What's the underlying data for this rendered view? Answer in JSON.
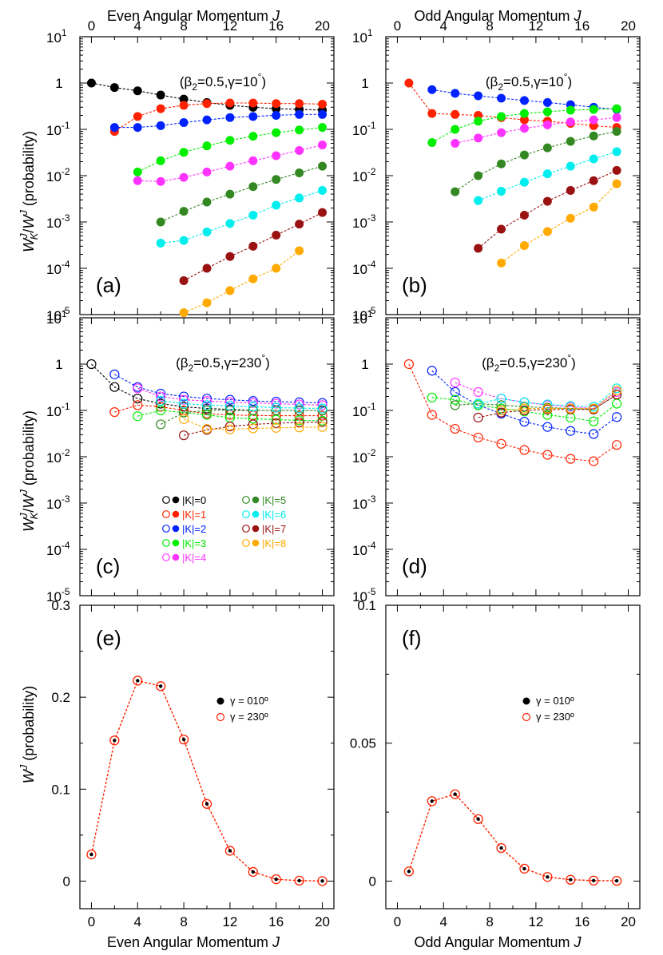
{
  "colors": {
    "K0": "#000000",
    "K1": "#ff2200",
    "K2": "#0022ff",
    "K3": "#00ee00",
    "K4": "#ff33ff",
    "K5": "#338822",
    "K6": "#00eeee",
    "K7": "#991111",
    "K8": "#ffaa00",
    "frame": "#000000"
  },
  "labels": {
    "top_even": "Even Angular Momentum J",
    "top_odd": "Odd Angular Momentum J",
    "bottom_even": "Even Angular Momentum J",
    "bottom_odd": "Odd Angular Momentum J",
    "ylabel_ratio": "W^J_K/W^J (probability)",
    "ylabel_total": "W^J (probability)",
    "annot_a": "(β₂=0.5,γ=10°)",
    "annot_c": "(β₂=0.5,γ=230°)"
  },
  "chart_data": [
    {
      "id": "a",
      "type": "scatter",
      "panel_label": "(a)",
      "annotation": "(β2=0.5,γ=10°)",
      "yscale": "log",
      "ylim": [
        1e-05,
        10
      ],
      "xlim": [
        -1,
        21
      ],
      "xticks": [
        0,
        4,
        8,
        12,
        16,
        20
      ],
      "ytick_labels": [
        "10^-5",
        "10^-4",
        "10^-3",
        "10^-2",
        "10^-1",
        "1",
        "10^1"
      ],
      "marker": "filled",
      "series": [
        {
          "name": "|K|=0",
          "x": [
            0,
            2,
            4,
            6,
            8,
            10,
            12,
            14,
            16,
            18,
            20
          ],
          "y": [
            1.0,
            0.8,
            0.68,
            0.55,
            0.45,
            0.38,
            0.33,
            0.3,
            0.28,
            0.27,
            0.26
          ]
        },
        {
          "name": "|K|=1",
          "x": [
            2,
            4,
            6,
            8,
            10,
            12,
            14,
            16,
            18,
            20
          ],
          "y": [
            0.09,
            0.19,
            0.28,
            0.33,
            0.36,
            0.37,
            0.37,
            0.36,
            0.36,
            0.35
          ]
        },
        {
          "name": "|K|=2",
          "x": [
            2,
            4,
            6,
            8,
            10,
            12,
            14,
            16,
            18,
            20
          ],
          "y": [
            0.11,
            0.11,
            0.12,
            0.14,
            0.16,
            0.18,
            0.19,
            0.2,
            0.21,
            0.21
          ]
        },
        {
          "name": "|K|=3",
          "x": [
            4,
            6,
            8,
            10,
            12,
            14,
            16,
            18,
            20
          ],
          "y": [
            0.012,
            0.021,
            0.032,
            0.044,
            0.058,
            0.071,
            0.085,
            0.097,
            0.11
          ]
        },
        {
          "name": "|K|=4",
          "x": [
            4,
            6,
            8,
            10,
            12,
            14,
            16,
            18,
            20
          ],
          "y": [
            0.0078,
            0.0075,
            0.0092,
            0.012,
            0.016,
            0.021,
            0.027,
            0.035,
            0.046
          ]
        },
        {
          "name": "|K|=5",
          "x": [
            6,
            8,
            10,
            12,
            14,
            16,
            18,
            20
          ],
          "y": [
            0.001,
            0.0017,
            0.0027,
            0.004,
            0.0058,
            0.0083,
            0.0115,
            0.016
          ]
        },
        {
          "name": "|K|=6",
          "x": [
            6,
            8,
            10,
            12,
            14,
            16,
            18,
            20
          ],
          "y": [
            0.00035,
            0.0004,
            0.00061,
            0.00093,
            0.0014,
            0.0023,
            0.0033,
            0.0048
          ]
        },
        {
          "name": "|K|=7",
          "x": [
            8,
            10,
            12,
            14,
            16,
            18,
            20
          ],
          "y": [
            5.4e-05,
            0.0001,
            0.00018,
            0.0003,
            0.00052,
            0.0009,
            0.0016
          ]
        },
        {
          "name": "|K|=8",
          "x": [
            8,
            10,
            12,
            14,
            16,
            18
          ],
          "y": [
            1.1e-05,
            1.8e-05,
            3.3e-05,
            5.9e-05,
            0.0001,
            0.00024
          ]
        }
      ]
    },
    {
      "id": "b",
      "type": "scatter",
      "panel_label": "(b)",
      "annotation": "(β2=0.5,γ=10°)",
      "yscale": "log",
      "ylim": [
        1e-05,
        10
      ],
      "xlim": [
        -1,
        21
      ],
      "xticks": [
        0,
        4,
        8,
        12,
        16,
        20
      ],
      "ytick_labels": [
        "10^-5",
        "10^-4",
        "10^-3",
        "10^-2",
        "10^-1",
        "1",
        "10^1"
      ],
      "marker": "filled",
      "series": [
        {
          "name": "|K|=1",
          "x": [
            1,
            3,
            5,
            7,
            9,
            11,
            13,
            15,
            17,
            19
          ],
          "y": [
            1.0,
            0.22,
            0.21,
            0.2,
            0.18,
            0.16,
            0.15,
            0.135,
            0.12,
            0.11
          ]
        },
        {
          "name": "|K|=2",
          "x": [
            3,
            5,
            7,
            9,
            11,
            13,
            15,
            17,
            19
          ],
          "y": [
            0.72,
            0.6,
            0.53,
            0.47,
            0.42,
            0.38,
            0.34,
            0.3,
            0.27
          ]
        },
        {
          "name": "|K|=3",
          "x": [
            3,
            5,
            7,
            9,
            11,
            13,
            15,
            17,
            19
          ],
          "y": [
            0.052,
            0.1,
            0.15,
            0.19,
            0.22,
            0.24,
            0.26,
            0.27,
            0.28
          ]
        },
        {
          "name": "|K|=4",
          "x": [
            5,
            7,
            9,
            11,
            13,
            15,
            17,
            19
          ],
          "y": [
            0.05,
            0.065,
            0.085,
            0.105,
            0.125,
            0.145,
            0.16,
            0.18
          ]
        },
        {
          "name": "|K|=5",
          "x": [
            5,
            7,
            9,
            11,
            13,
            15,
            17,
            19
          ],
          "y": [
            0.0045,
            0.01,
            0.018,
            0.028,
            0.04,
            0.055,
            0.072,
            0.09
          ]
        },
        {
          "name": "|K|=6",
          "x": [
            7,
            9,
            11,
            13,
            15,
            17,
            19
          ],
          "y": [
            0.0029,
            0.0046,
            0.0072,
            0.011,
            0.016,
            0.023,
            0.033
          ]
        },
        {
          "name": "|K|=7",
          "x": [
            7,
            9,
            11,
            13,
            15,
            17,
            19
          ],
          "y": [
            0.00027,
            0.0007,
            0.0014,
            0.0028,
            0.0048,
            0.0078,
            0.013
          ]
        },
        {
          "name": "|K|=8",
          "x": [
            9,
            11,
            13,
            15,
            17,
            19
          ],
          "y": [
            0.00013,
            0.00031,
            0.00062,
            0.0012,
            0.0021,
            0.0067
          ]
        }
      ]
    },
    {
      "id": "c",
      "type": "scatter",
      "panel_label": "(c)",
      "annotation": "(β2=0.5,γ=230°)",
      "yscale": "log",
      "ylim": [
        1e-05,
        10
      ],
      "xlim": [
        -1,
        21
      ],
      "xticks": [
        0,
        4,
        8,
        12,
        16,
        20
      ],
      "ytick_labels": [
        "10^-5",
        "10^-4",
        "10^-3",
        "10^-2",
        "10^-1",
        "1",
        "10^1"
      ],
      "marker": "open",
      "legend": {
        "placement": "lower-middle",
        "entries": [
          {
            "label": "|K|=0",
            "key": "K0"
          },
          {
            "label": "|K|=1",
            "key": "K1"
          },
          {
            "label": "|K|=2",
            "key": "K2"
          },
          {
            "label": "|K|=3",
            "key": "K3"
          },
          {
            "label": "|K|=4",
            "key": "K4"
          },
          {
            "label": "|K|=5",
            "key": "K5"
          },
          {
            "label": "|K|=6",
            "key": "K6"
          },
          {
            "label": "|K|=7",
            "key": "K7"
          },
          {
            "label": "|K|=8",
            "key": "K8"
          }
        ]
      },
      "series": [
        {
          "name": "|K|=0",
          "x": [
            0,
            2,
            4,
            6,
            8,
            10,
            12,
            14,
            16,
            18,
            20
          ],
          "y": [
            1.0,
            0.32,
            0.18,
            0.14,
            0.12,
            0.11,
            0.105,
            0.1,
            0.1,
            0.1,
            0.1
          ]
        },
        {
          "name": "|K|=1",
          "x": [
            2,
            4,
            6,
            8,
            10,
            12,
            14,
            16,
            18,
            20
          ],
          "y": [
            0.092,
            0.13,
            0.12,
            0.1,
            0.085,
            0.08,
            0.078,
            0.077,
            0.077,
            0.077
          ]
        },
        {
          "name": "|K|=2",
          "x": [
            2,
            4,
            6,
            8,
            10,
            12,
            14,
            16,
            18,
            20
          ],
          "y": [
            0.6,
            0.32,
            0.23,
            0.2,
            0.18,
            0.17,
            0.16,
            0.155,
            0.15,
            0.145
          ]
        },
        {
          "name": "|K|=3",
          "x": [
            4,
            6,
            8,
            10,
            12,
            14,
            16,
            18,
            20
          ],
          "y": [
            0.075,
            0.1,
            0.09,
            0.08,
            0.07,
            0.066,
            0.063,
            0.061,
            0.06
          ]
        },
        {
          "name": "|K|=4",
          "x": [
            4,
            6,
            8,
            10,
            12,
            14,
            16,
            18,
            20
          ],
          "y": [
            0.3,
            0.2,
            0.17,
            0.16,
            0.15,
            0.145,
            0.14,
            0.135,
            0.13
          ]
        },
        {
          "name": "|K|=5",
          "x": [
            6,
            8,
            10,
            12,
            14,
            16,
            18,
            20
          ],
          "y": [
            0.05,
            0.09,
            0.1,
            0.1,
            0.1,
            0.1,
            0.1,
            0.1
          ]
        },
        {
          "name": "|K|=6",
          "x": [
            6,
            8,
            10,
            12,
            14,
            16,
            18,
            20
          ],
          "y": [
            0.16,
            0.14,
            0.13,
            0.125,
            0.12,
            0.115,
            0.112,
            0.11
          ]
        },
        {
          "name": "|K|=7",
          "x": [
            8,
            10,
            12,
            14,
            16,
            18,
            20
          ],
          "y": [
            0.029,
            0.038,
            0.045,
            0.05,
            0.053,
            0.055,
            0.056
          ]
        },
        {
          "name": "|K|=8",
          "x": [
            8,
            10,
            12,
            14,
            16,
            18,
            20
          ],
          "y": [
            0.065,
            0.04,
            0.039,
            0.041,
            0.042,
            0.043,
            0.044
          ]
        }
      ]
    },
    {
      "id": "d",
      "type": "scatter",
      "panel_label": "(d)",
      "annotation": "(β2=0.5,γ=230°)",
      "yscale": "log",
      "ylim": [
        1e-05,
        10
      ],
      "xlim": [
        -1,
        21
      ],
      "xticks": [
        0,
        4,
        8,
        12,
        16,
        20
      ],
      "ytick_labels": [
        "10^-5",
        "10^-4",
        "10^-3",
        "10^-2",
        "10^-1",
        "1",
        "10^1"
      ],
      "marker": "open",
      "series": [
        {
          "name": "|K|=1",
          "x": [
            1,
            3,
            5,
            7,
            9,
            11,
            13,
            15,
            17,
            19
          ],
          "y": [
            1.0,
            0.08,
            0.04,
            0.026,
            0.019,
            0.014,
            0.011,
            0.009,
            0.008,
            0.018
          ]
        },
        {
          "name": "|K|=2",
          "x": [
            3,
            5,
            7,
            9,
            11,
            13,
            15,
            17,
            19
          ],
          "y": [
            0.72,
            0.25,
            0.13,
            0.085,
            0.057,
            0.044,
            0.036,
            0.031,
            0.072
          ]
        },
        {
          "name": "|K|=3",
          "x": [
            3,
            5,
            7,
            9,
            11,
            13,
            15,
            17,
            19
          ],
          "y": [
            0.19,
            0.17,
            0.13,
            0.11,
            0.095,
            0.08,
            0.07,
            0.058,
            0.14
          ]
        },
        {
          "name": "|K|=4",
          "x": [
            5,
            7,
            9,
            11,
            13,
            15,
            17,
            19
          ],
          "y": [
            0.4,
            0.25,
            0.18,
            0.15,
            0.13,
            0.12,
            0.11,
            0.25
          ]
        },
        {
          "name": "|K|=5",
          "x": [
            5,
            7,
            9,
            11,
            13,
            15,
            17,
            19
          ],
          "y": [
            0.13,
            0.14,
            0.13,
            0.12,
            0.115,
            0.11,
            0.105,
            0.22
          ]
        },
        {
          "name": "|K|=6",
          "x": [
            7,
            9,
            11,
            13,
            15,
            17,
            19
          ],
          "y": [
            0.14,
            0.18,
            0.15,
            0.135,
            0.125,
            0.12,
            0.3
          ]
        },
        {
          "name": "|K|=7",
          "x": [
            7,
            9,
            11,
            13,
            15,
            17,
            19
          ],
          "y": [
            0.07,
            0.09,
            0.1,
            0.105,
            0.105,
            0.105,
            0.22
          ]
        },
        {
          "name": "|K|=8",
          "x": [
            9,
            11,
            13,
            15,
            17,
            19
          ],
          "y": [
            0.1,
            0.11,
            0.11,
            0.11,
            0.11,
            0.27
          ]
        }
      ]
    },
    {
      "id": "e",
      "type": "line",
      "panel_label": "(e)",
      "yscale": "linear",
      "ylim": [
        -0.03,
        0.3
      ],
      "xlim": [
        -1,
        21
      ],
      "xticks": [
        0,
        4,
        8,
        12,
        16,
        20
      ],
      "yticks": [
        0,
        0.1,
        0.2,
        0.3
      ],
      "ytick_labels": [
        "0",
        "0.1",
        "0.2",
        "0.3"
      ],
      "legend": {
        "placement": "upper-right",
        "entries": [
          {
            "label": "γ = 010º",
            "style": "filled"
          },
          {
            "label": "γ = 230º",
            "style": "open"
          }
        ]
      },
      "x": [
        0,
        2,
        4,
        6,
        8,
        10,
        12,
        14,
        16,
        18,
        20
      ],
      "series": [
        {
          "name": "γ = 010º",
          "values": [
            0.029,
            0.153,
            0.218,
            0.212,
            0.154,
            0.084,
            0.033,
            0.01,
            0.002,
            0.0005,
            0.0001
          ]
        },
        {
          "name": "γ = 230º",
          "values": [
            0.029,
            0.153,
            0.218,
            0.212,
            0.154,
            0.084,
            0.033,
            0.01,
            0.002,
            0.0005,
            0.0001
          ]
        }
      ]
    },
    {
      "id": "f",
      "type": "line",
      "panel_label": "(f)",
      "yscale": "linear",
      "ylim": [
        -0.01,
        0.1
      ],
      "xlim": [
        -1,
        21
      ],
      "xticks": [
        0,
        4,
        8,
        12,
        16,
        20
      ],
      "yticks": [
        0,
        0.05,
        0.1
      ],
      "ytick_labels": [
        "0",
        "0.05",
        "0.1"
      ],
      "legend": {
        "placement": "upper-right",
        "entries": [
          {
            "label": "γ = 010º",
            "style": "filled"
          },
          {
            "label": "γ = 230º",
            "style": "open"
          }
        ]
      },
      "x": [
        1,
        3,
        5,
        7,
        9,
        11,
        13,
        15,
        17,
        19
      ],
      "series": [
        {
          "name": "γ = 010º",
          "values": [
            0.0035,
            0.029,
            0.0315,
            0.0225,
            0.012,
            0.0045,
            0.0015,
            0.0005,
            0.0002,
            0.0001
          ]
        },
        {
          "name": "γ = 230º",
          "values": [
            0.0035,
            0.029,
            0.0315,
            0.0225,
            0.012,
            0.0045,
            0.0015,
            0.0005,
            0.0002,
            0.0001
          ]
        }
      ]
    }
  ]
}
